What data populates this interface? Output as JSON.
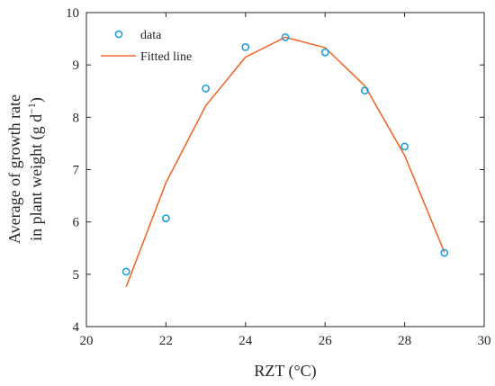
{
  "chart_data": {
    "type": "scatter",
    "xlabel": "RZT (°C)",
    "ylabel_line1": "Average of growth rate",
    "ylabel_line2_main": "in plant weight (g d",
    "ylabel_line2_sup": "−1",
    "ylabel_line2_end": ")",
    "xlim": [
      20,
      30
    ],
    "ylim": [
      4,
      10
    ],
    "xticks": [
      20,
      22,
      24,
      26,
      28,
      30
    ],
    "yticks": [
      4,
      5,
      6,
      7,
      8,
      9,
      10
    ],
    "grid": false,
    "legend_position": "top-left",
    "series": [
      {
        "name": "data",
        "kind": "scatter",
        "marker": "circle",
        "color": "#1f9fd8",
        "x": [
          21,
          22,
          23,
          24,
          25,
          26,
          27,
          28,
          29
        ],
        "y": [
          5.05,
          6.07,
          8.55,
          9.34,
          9.53,
          9.24,
          8.51,
          7.44,
          5.41
        ]
      },
      {
        "name": "Fitted line",
        "kind": "line",
        "color": "#f06a2e",
        "x": [
          21,
          22,
          23,
          24,
          25,
          26,
          27,
          28,
          29
        ],
        "y": [
          4.76,
          6.75,
          8.22,
          9.15,
          9.53,
          9.33,
          8.6,
          7.27,
          5.42
        ]
      }
    ]
  }
}
